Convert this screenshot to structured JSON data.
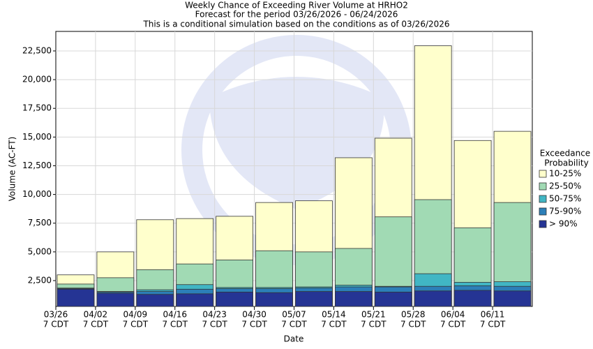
{
  "chart_data": {
    "type": "bar",
    "title": [
      "Weekly Chance of Exceeding River Volume at HRHO2",
      "Forecast for the period 03/26/2026 - 06/24/2026",
      "This is a conditional simulation based on the conditions as of 03/26/2026"
    ],
    "x_label": "Date",
    "y_label": "Volume (AC-FT)",
    "categories": [
      "03/26",
      "04/02",
      "04/09",
      "04/16",
      "04/23",
      "04/30",
      "05/07",
      "05/14",
      "05/21",
      "05/28",
      "06/04",
      "06/11"
    ],
    "category_suffix": "7 CDT",
    "legend_title": [
      "Exceedance",
      "Probability"
    ],
    "legend": "right",
    "grid": true,
    "ylim": [
      250,
      24200
    ],
    "yticks": [
      {
        "value": 2500,
        "label": "2,500"
      },
      {
        "value": 5000,
        "label": "5,000"
      },
      {
        "value": 7500,
        "label": "7,500"
      },
      {
        "value": 10000,
        "label": "10,000"
      },
      {
        "value": 12500,
        "label": "12,500"
      },
      {
        "value": 15000,
        "label": "15,000"
      },
      {
        "value": 17500,
        "label": "17,500"
      },
      {
        "value": 20000,
        "label": "20,000"
      },
      {
        "value": 22500,
        "label": "22,500"
      }
    ],
    "series": [
      {
        "name": "10-25%",
        "color": "#ffffcc",
        "values": [
          3000,
          5000,
          7800,
          7900,
          8100,
          9300,
          9450,
          13200,
          14900,
          22950,
          14700,
          15500
        ]
      },
      {
        "name": "25-50%",
        "color": "#a1dab4",
        "values": [
          2200,
          2750,
          3450,
          3950,
          4300,
          5100,
          5000,
          5300,
          8050,
          9550,
          7100,
          9300
        ]
      },
      {
        "name": "50-75%",
        "color": "#41b6c4",
        "values": [
          1850,
          1550,
          1700,
          2150,
          1900,
          1900,
          1950,
          2100,
          2000,
          3100,
          2350,
          2400
        ]
      },
      {
        "name": "75-90%",
        "color": "#2c7fb8",
        "values": [
          1800,
          1500,
          1550,
          1750,
          1800,
          1800,
          1850,
          1950,
          1950,
          2000,
          2050,
          2000
        ]
      },
      {
        "name": "> 90%",
        "color": "#253494",
        "values": [
          1750,
          1400,
          1300,
          1350,
          1500,
          1450,
          1550,
          1550,
          1500,
          1600,
          1650,
          1600
        ]
      }
    ]
  }
}
